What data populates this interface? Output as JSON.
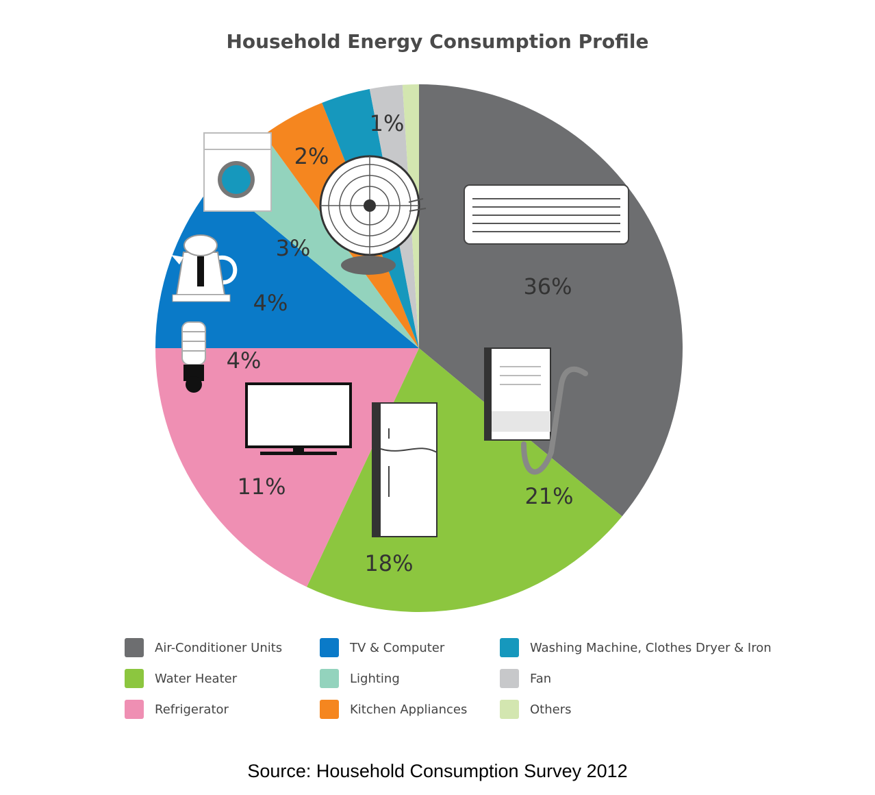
{
  "chart_data": {
    "type": "pie",
    "title": "Household Energy Consumption Profile",
    "slices": [
      {
        "label": "Air-Conditioner Units",
        "value": 36,
        "display": "36%",
        "color": "#6d6e70",
        "icon": "air-conditioner-icon"
      },
      {
        "label": "Water Heater",
        "value": 21,
        "display": "21%",
        "color": "#8cc63f",
        "icon": "water-heater-icon"
      },
      {
        "label": "Refrigerator",
        "value": 18,
        "display": "18%",
        "color": "#ef8fb3",
        "icon": "refrigerator-icon"
      },
      {
        "label": "TV & Computer",
        "value": 11,
        "display": "11%",
        "color": "#0a7ac8",
        "icon": "tv-icon"
      },
      {
        "label": "Lighting",
        "value": 4,
        "display": "4%",
        "color": "#93d3bd",
        "icon": "light-bulb-icon"
      },
      {
        "label": "Kitchen Appliances",
        "value": 4,
        "display": "4%",
        "color": "#f5861f",
        "icon": "kettle-icon"
      },
      {
        "label": "Washing Machine, Clothes Dryer & Iron",
        "value": 3,
        "display": "3%",
        "color": "#1698bd",
        "icon": "washing-machine-icon"
      },
      {
        "label": "Fan",
        "value": 2,
        "display": "2%",
        "color": "#c7c8ca",
        "icon": "fan-icon"
      },
      {
        "label": "Others",
        "value": 1,
        "display": "1%",
        "color": "#d3e6b0"
      }
    ],
    "start": "12 o'clock",
    "direction": "clockwise",
    "legend_placement": "bottom"
  },
  "legend": {
    "columns": [
      [
        "Air-Conditioner Units",
        "Water Heater",
        "Refrigerator"
      ],
      [
        "TV & Computer",
        "Lighting",
        "Kitchen Appliances"
      ],
      [
        "Washing Machine, Clothes Dryer & Iron",
        "Fan",
        "Others"
      ]
    ]
  },
  "source": "Source: Household Consumption Survey 2012"
}
